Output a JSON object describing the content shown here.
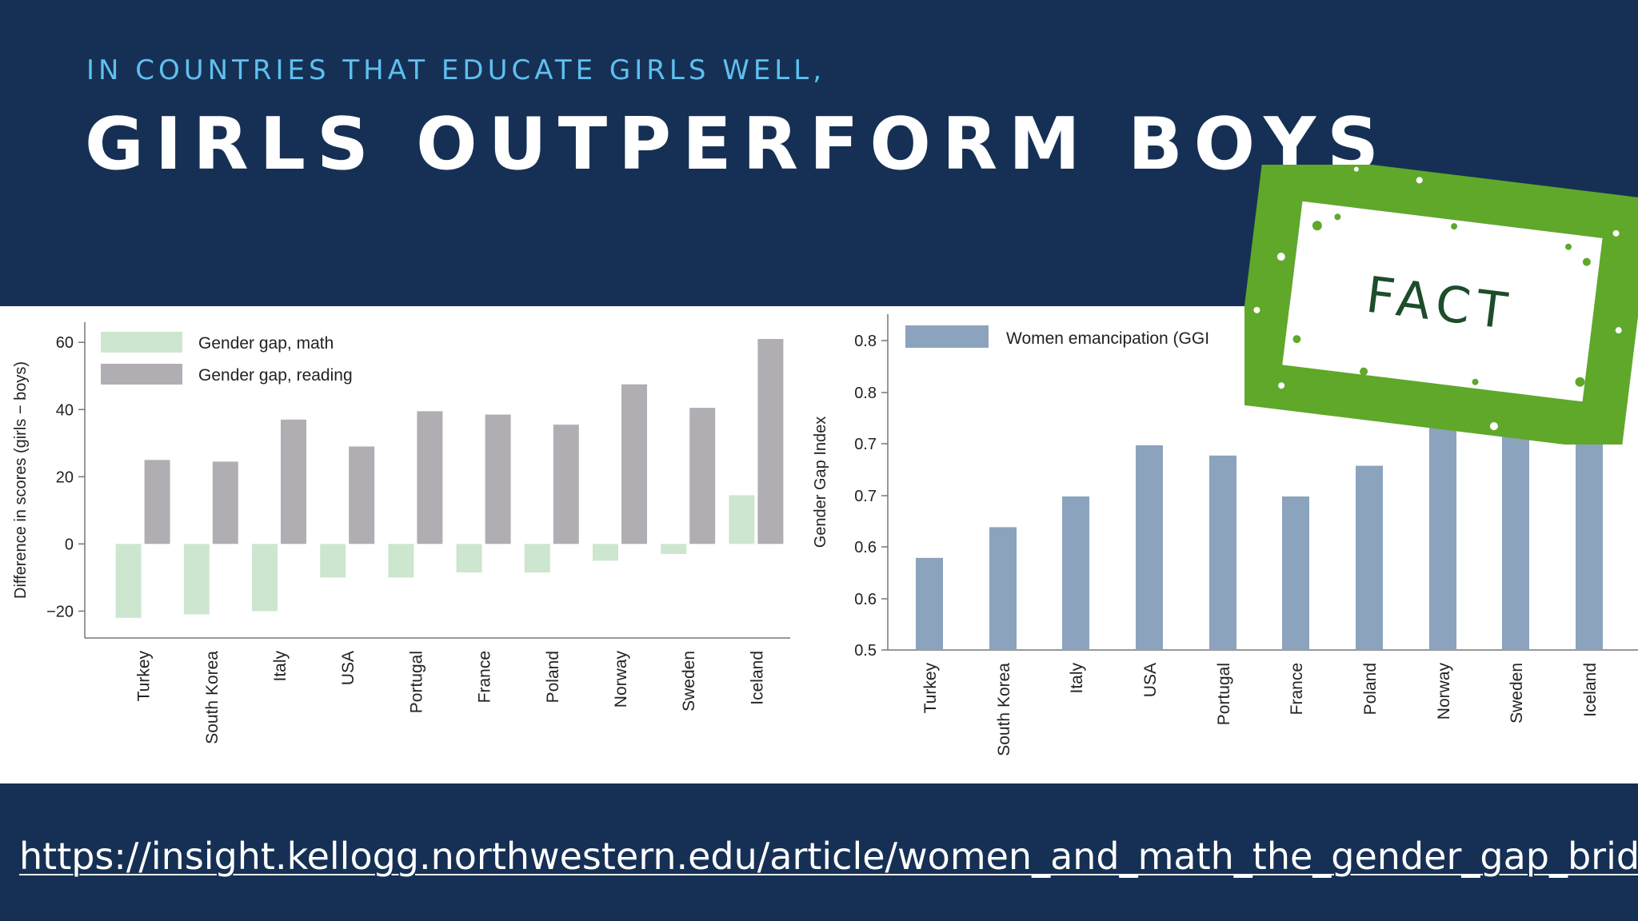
{
  "slide": {
    "kicker": "IN COUNTRIES THAT EDUCATE GIRLS WELL,",
    "headline": "GIRLS OUTPERFORM BOYS",
    "stamp_text": "FACT",
    "source_url": "https://insight.kellogg.northwestern.edu/article/women_and_math_the_gender_gap_bridged"
  },
  "colors": {
    "background": "#163055",
    "kicker": "#5fc0ee",
    "math_bar": "#cde6cf",
    "reading_bar": "#b1aeb3",
    "ggi_bar": "#8ca3bd",
    "stamp": "#5fa82a",
    "stamp_text": "#1d4d2a"
  },
  "chart_data": [
    {
      "type": "bar",
      "categories": [
        "Turkey",
        "South Korea",
        "Italy",
        "USA",
        "Portugal",
        "France",
        "Poland",
        "Norway",
        "Sweden",
        "Iceland"
      ],
      "series": [
        {
          "name": "Gender gap, math",
          "values": [
            -22,
            -21,
            -20,
            -10,
            -10,
            -8.5,
            -8.5,
            -5,
            -3,
            14.5
          ]
        },
        {
          "name": "Gender gap, reading",
          "values": [
            25,
            24.5,
            37,
            29,
            39.5,
            38.5,
            35.5,
            47.5,
            40.5,
            61
          ]
        }
      ],
      "ylabel": "Difference in scores (girls − boys)",
      "ylim": [
        -28,
        66
      ],
      "yticks": [
        "60",
        "40",
        "20",
        "0",
        "−20"
      ],
      "legend_position": "top-left",
      "grid": false
    },
    {
      "type": "bar",
      "categories": [
        "Turkey",
        "South Korea",
        "Italy",
        "USA",
        "Portugal",
        "France",
        "Poland",
        "Norway",
        "Sweden",
        "Iceland"
      ],
      "series": [
        {
          "name": "Women emancipation (GGI",
          "values": [
            0.59,
            0.62,
            0.65,
            0.7,
            0.69,
            0.65,
            0.68,
            0.75,
            0.79,
            0.85
          ]
        }
      ],
      "ylabel": "Gender Gap Index",
      "ylim": [
        0.5,
        0.8
      ],
      "yticks": [
        "0.8",
        "0.8",
        "0.7",
        "0.7",
        "0.6",
        "0.6",
        "0.5"
      ],
      "legend_position": "top-left",
      "grid": false
    }
  ]
}
